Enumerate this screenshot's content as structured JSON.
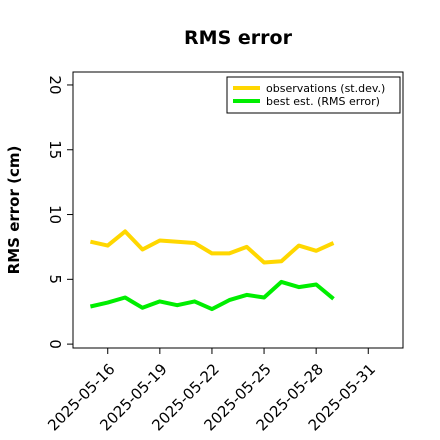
{
  "chart_data": {
    "type": "line",
    "title": "RMS error",
    "xlabel": "",
    "ylabel": "RMS error (cm)",
    "xlim": [
      "2025-05-14",
      "2025-06-02"
    ],
    "ylim": [
      -0.3,
      21
    ],
    "yticks": [
      0,
      5,
      10,
      15,
      20
    ],
    "xticks": [
      {
        "label": "2025-05-16",
        "color": "#000000"
      },
      {
        "label": "2025-05-19",
        "color": "#000000"
      },
      {
        "label": "2025-05-22",
        "color": "#228B22"
      },
      {
        "label": "2025-05-25",
        "color": "#000000"
      },
      {
        "label": "2025-05-28",
        "color": "#000000"
      },
      {
        "label": "2025-05-31",
        "color": "#000000"
      }
    ],
    "x": [
      "2025-05-15",
      "2025-05-16",
      "2025-05-17",
      "2025-05-18",
      "2025-05-19",
      "2025-05-20",
      "2025-05-21",
      "2025-05-22",
      "2025-05-23",
      "2025-05-24",
      "2025-05-25",
      "2025-05-26",
      "2025-05-27",
      "2025-05-28",
      "2025-05-29"
    ],
    "series": [
      {
        "name": "observations (st.dev.)",
        "color": "#FFD700",
        "values": [
          7.9,
          7.6,
          8.7,
          7.3,
          8.0,
          7.9,
          7.8,
          7.0,
          7.0,
          7.5,
          6.3,
          6.4,
          7.6,
          7.2,
          7.8
        ]
      },
      {
        "name": "best est. (RMS error)",
        "color": "#00EE00",
        "values": [
          2.9,
          3.2,
          3.6,
          2.8,
          3.3,
          3.0,
          3.3,
          2.7,
          3.4,
          3.8,
          3.6,
          4.8,
          4.4,
          4.6,
          3.5
        ]
      }
    ],
    "legend_position": "top-right",
    "grid": false
  }
}
